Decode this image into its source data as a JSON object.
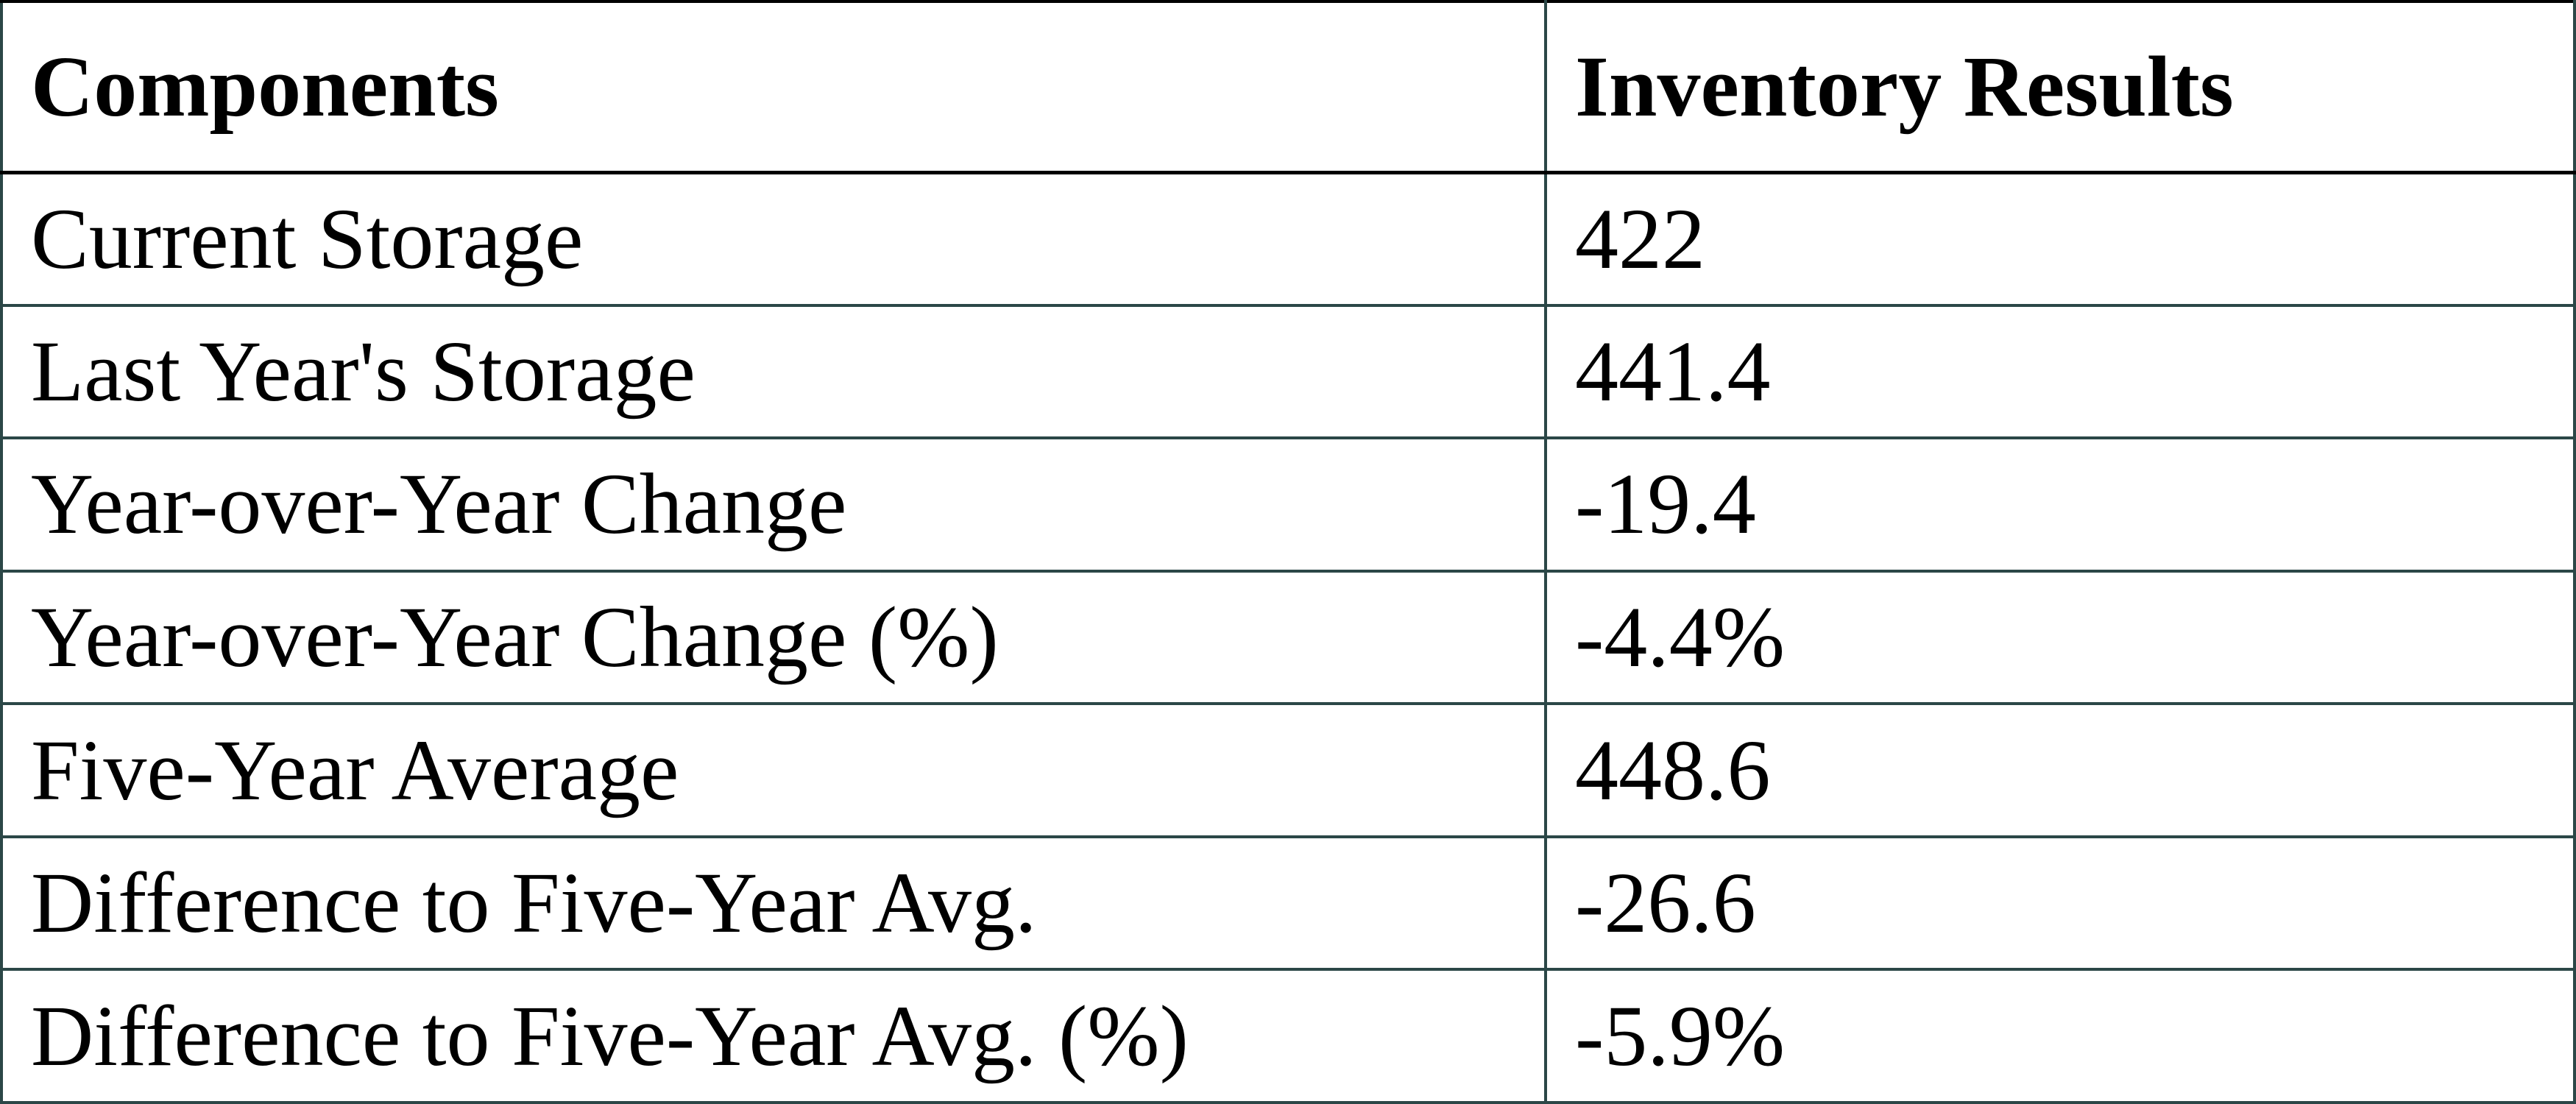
{
  "table": {
    "header": [
      "Components",
      "Inventory Results"
    ],
    "rows": [
      [
        "Current Storage",
        "422"
      ],
      [
        "Last Year's Storage",
        "441.4"
      ],
      [
        "Year-over-Year Change",
        "-19.4"
      ],
      [
        "Year-over-Year Change (%)",
        "-4.4%"
      ],
      [
        "Five-Year Average",
        "448.6"
      ],
      [
        "Difference to Five-Year Avg.",
        "-26.6"
      ],
      [
        "Difference to Five-Year Avg. (%)",
        "-5.9%"
      ]
    ]
  }
}
